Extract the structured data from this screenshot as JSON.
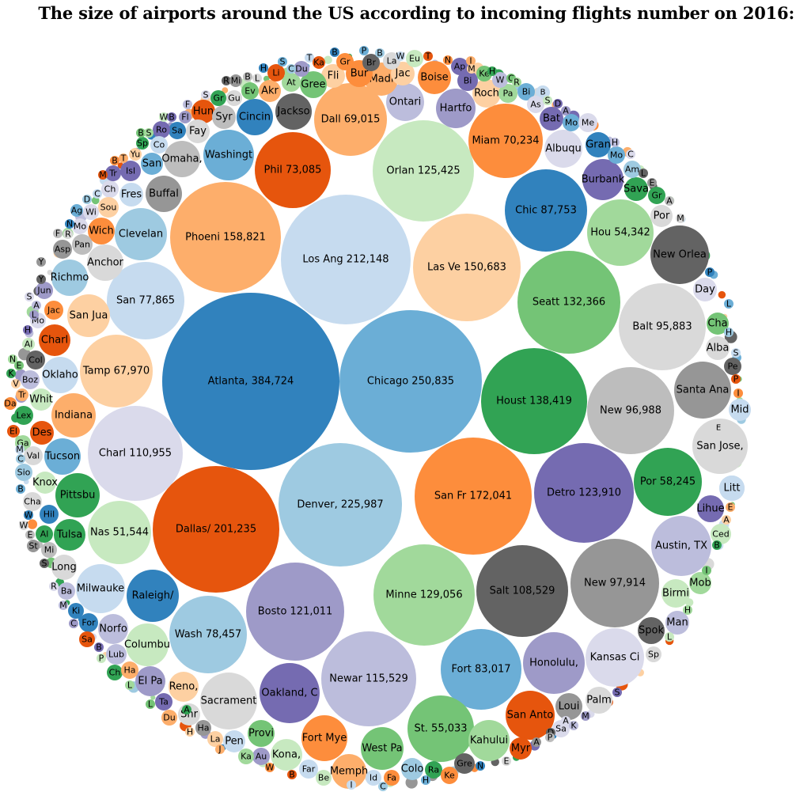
{
  "title": "The size of airports around the US according to incoming flights number on 2016:",
  "palette": [
    "#3182bd",
    "#6baed6",
    "#9ecae1",
    "#c6dbef",
    "#e6550d",
    "#fd8d3c",
    "#fdae6b",
    "#fdd0a2",
    "#31a354",
    "#74c476",
    "#a1d99b",
    "#c7e9c0",
    "#756bb1",
    "#9e9ac8",
    "#bcbddc",
    "#dadaeb",
    "#636363",
    "#969696",
    "#bdbdbd",
    "#d9d9d9"
  ],
  "chart_data": {
    "type": "bubble",
    "title": "The size of airports around the US according to incoming flights number on 2016:",
    "series": [
      {
        "label": "Atlanta, 384,724",
        "value": 384724,
        "color": "#3182bd"
      },
      {
        "label": "Chicago 250,835",
        "value": 250835,
        "color": "#6baed6"
      },
      {
        "label": "Denver, 225,987",
        "value": 225987,
        "color": "#9ecae1"
      },
      {
        "label": "Los Ang 212,148",
        "value": 212148,
        "color": "#c6dbef"
      },
      {
        "label": "Dallas/ 201,235",
        "value": 201235,
        "color": "#e6550d"
      },
      {
        "label": "San Fr 172,041",
        "value": 172041,
        "color": "#fd8d3c"
      },
      {
        "label": "Phoeni 158,821",
        "value": 158821,
        "color": "#fdae6b"
      },
      {
        "label": "Las Ve 150,683",
        "value": 150683,
        "color": "#fdd0a2"
      },
      {
        "label": "Houst 138,419",
        "value": 138419,
        "color": "#31a354"
      },
      {
        "label": "Seatt 132,366",
        "value": 132366,
        "color": "#74c476"
      },
      {
        "label": "Minne 129,056",
        "value": 129056,
        "color": "#a1d99b"
      },
      {
        "label": "Orlan 125,425",
        "value": 125425,
        "color": "#c7e9c0"
      },
      {
        "label": "Detro 123,910",
        "value": 123910,
        "color": "#756bb1"
      },
      {
        "label": "Bosto 121,011",
        "value": 121011,
        "color": "#9e9ac8"
      },
      {
        "label": "Newar 115,529",
        "value": 115529,
        "color": "#bcbddc"
      },
      {
        "label": "Charl 110,955",
        "value": 110955,
        "color": "#dadaeb"
      },
      {
        "label": "Salt 108,529",
        "value": 108529,
        "color": "#636363"
      },
      {
        "label": "New 97,914",
        "value": 97914,
        "color": "#969696"
      },
      {
        "label": "New 96,988",
        "value": 96988,
        "color": "#bdbdbd"
      },
      {
        "label": "Balt 95,883",
        "value": 95883,
        "color": "#d9d9d9"
      },
      {
        "label": "Chic 87,753",
        "value": 87753,
        "color": "#3182bd"
      },
      {
        "label": "Fort 83,017",
        "value": 83017,
        "color": "#6baed6"
      },
      {
        "label": "Wash 78,457",
        "value": 78457,
        "color": "#9ecae1"
      },
      {
        "label": "San 77,865",
        "value": 77865,
        "color": "#c6dbef"
      },
      {
        "label": "Phil 73,085",
        "value": 73085,
        "color": "#e6550d"
      },
      {
        "label": "Miam 70,234",
        "value": 70234,
        "color": "#fd8d3c"
      },
      {
        "label": "Dall 69,015",
        "value": 69015,
        "color": "#fdae6b"
      },
      {
        "label": "Tamp 67,970",
        "value": 67970,
        "color": "#fdd0a2"
      },
      {
        "label": "Por 58,245",
        "value": 58245,
        "color": "#31a354"
      },
      {
        "label": "St. 55,033",
        "value": 55033,
        "color": "#74c476"
      },
      {
        "label": "Hou 54,342",
        "value": 54342,
        "color": "#a1d99b"
      },
      {
        "label": "Nas 51,544",
        "value": 51544,
        "color": "#c7e9c0"
      },
      {
        "label": "Oakland, C",
        "value": 45000,
        "color": "#756bb1"
      },
      {
        "label": "Honolulu,",
        "value": 44000,
        "color": "#9e9ac8"
      },
      {
        "label": "Austin, TX",
        "value": 42000,
        "color": "#bcbddc"
      },
      {
        "label": "Kansas Ci",
        "value": 43000,
        "color": "#dadaeb"
      },
      {
        "label": "New Orlea",
        "value": 41000,
        "color": "#636363"
      },
      {
        "label": "Santa Ana",
        "value": 40000,
        "color": "#969696"
      },
      {
        "label": "Sacrament",
        "value": 39000,
        "color": "#d9d9d9"
      },
      {
        "label": "San Jose,",
        "value": 37000,
        "color": "#d9d9d9"
      },
      {
        "label": "San Anto",
        "value": 31000,
        "color": "#e6550d"
      },
      {
        "label": "Fort Mye",
        "value": 28000,
        "color": "#fd8d3c"
      },
      {
        "label": "Raleigh/",
        "value": 34000,
        "color": "#3182bd"
      },
      {
        "label": "Milwauke",
        "value": 31000,
        "color": "#c6dbef"
      },
      {
        "label": "Clevelan",
        "value": 33000,
        "color": "#9ecae1"
      },
      {
        "label": "Washingt",
        "value": 32000,
        "color": "#6baed6"
      },
      {
        "label": "Indiana",
        "value": 28000,
        "color": "#fdae6b"
      },
      {
        "label": "Pittsbu",
        "value": 26000,
        "color": "#31a354"
      },
      {
        "label": "Orlan",
        "value": 0,
        "color": "#c7e9c0"
      },
      {
        "label": "Kahului",
        "value": 22000,
        "color": "#a1d99b"
      },
      {
        "label": "Burbank",
        "value": 22000,
        "color": "#756bb1"
      },
      {
        "label": "Memph",
        "value": 16000,
        "color": "#fdae6b"
      },
      {
        "label": "West Pa",
        "value": 24000,
        "color": "#74c476"
      },
      {
        "label": "Kona,",
        "value": 15000,
        "color": "#c7e9c0"
      },
      {
        "label": "Columbu",
        "value": 22000,
        "color": "#c7e9c0"
      },
      {
        "label": "Tucson",
        "value": 15000,
        "color": "#6baed6"
      },
      {
        "label": "Oklaho",
        "value": 16000,
        "color": "#c6dbef"
      },
      {
        "label": "San Jua",
        "value": 23000,
        "color": "#fdd0a2"
      },
      {
        "label": "Richmo",
        "value": 15000,
        "color": "#9ecae1"
      },
      {
        "label": "Anchor",
        "value": 16000,
        "color": "#d9d9d9"
      },
      {
        "label": "Buffal",
        "value": 16000,
        "color": "#969696"
      },
      {
        "label": "Omaha,",
        "value": 16000,
        "color": "#bdbdbd"
      },
      {
        "label": "Cincin",
        "value": 16000,
        "color": "#3182bd"
      },
      {
        "label": "Jackso",
        "value": 16000,
        "color": "#636363"
      },
      {
        "label": "Ontari",
        "value": 18000,
        "color": "#bcbddc"
      },
      {
        "label": "Hartfo",
        "value": 19000,
        "color": "#9e9ac8"
      },
      {
        "label": "Albuqu",
        "value": 17000,
        "color": "#dadaeb"
      },
      {
        "label": "Boise",
        "value": 15000,
        "color": "#fd8d3c"
      },
      {
        "label": "Tulsa",
        "value": 14000,
        "color": "#31a354"
      },
      {
        "label": "Norfo",
        "value": 13000,
        "color": "#bcbddc"
      },
      {
        "label": "Reno,",
        "value": 14000,
        "color": "#fdd0a2"
      },
      {
        "label": "El Pa",
        "value": 13000,
        "color": "#9e9ac8"
      },
      {
        "label": "Spok",
        "value": 11000,
        "color": "#636363"
      },
      {
        "label": "Loui",
        "value": 12000,
        "color": "#969696"
      },
      {
        "label": "Litt",
        "value": 10000,
        "color": "#c6dbef"
      },
      {
        "label": "Day",
        "value": 9000,
        "color": "#dadaeb"
      },
      {
        "label": "Des",
        "value": 10000,
        "color": "#e6550d"
      },
      {
        "label": "Charl",
        "value": 10000,
        "color": "#e6550d"
      }
    ]
  }
}
